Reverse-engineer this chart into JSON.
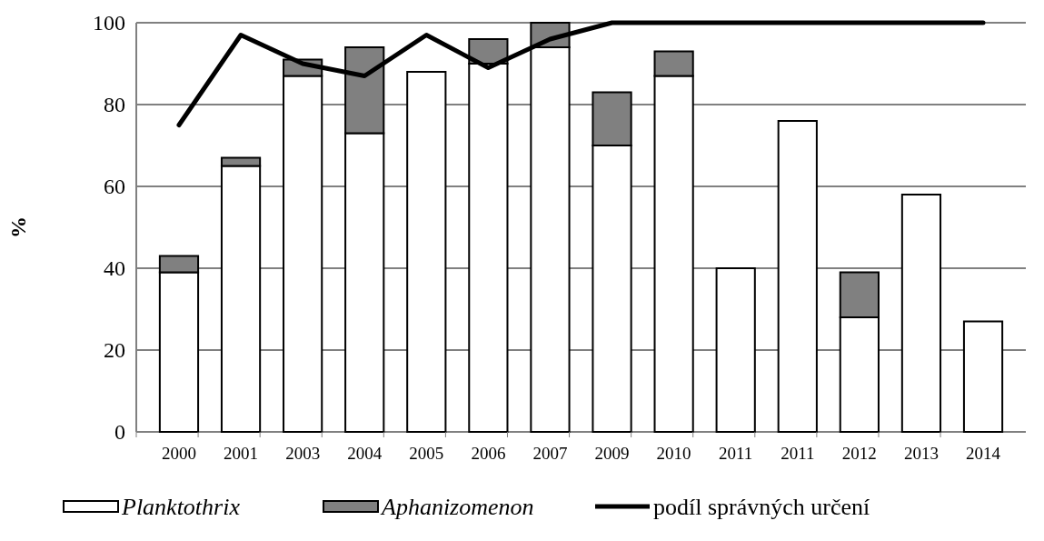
{
  "chart_data": {
    "type": "bar",
    "stacked": true,
    "ylabel": "%",
    "categories": [
      "2000",
      "2001",
      "2003",
      "2004",
      "2005",
      "2006",
      "2007",
      "2009",
      "2010",
      "2011",
      "2011",
      "2012",
      "2013",
      "2014"
    ],
    "series": [
      {
        "name": "Planktothrix",
        "color": "#ffffff",
        "values": [
          39,
          65,
          87,
          73,
          88,
          90,
          94,
          70,
          87,
          40,
          76,
          28,
          58,
          27
        ]
      },
      {
        "name": "Aphanizomenon",
        "color": "#808080",
        "values": [
          4,
          2,
          4,
          21,
          0,
          6,
          6,
          13,
          6,
          0,
          0,
          11,
          0,
          0
        ]
      },
      {
        "name": "podíl správných určení",
        "type": "line",
        "color": "#000000",
        "values": [
          75,
          97,
          90,
          87,
          97,
          89,
          96,
          100,
          100,
          100,
          100,
          100,
          100,
          100
        ]
      }
    ],
    "ylim": [
      0,
      100
    ],
    "yticks": [
      0,
      20,
      40,
      60,
      80,
      100
    ],
    "grid": "y",
    "legend": "bottom"
  }
}
